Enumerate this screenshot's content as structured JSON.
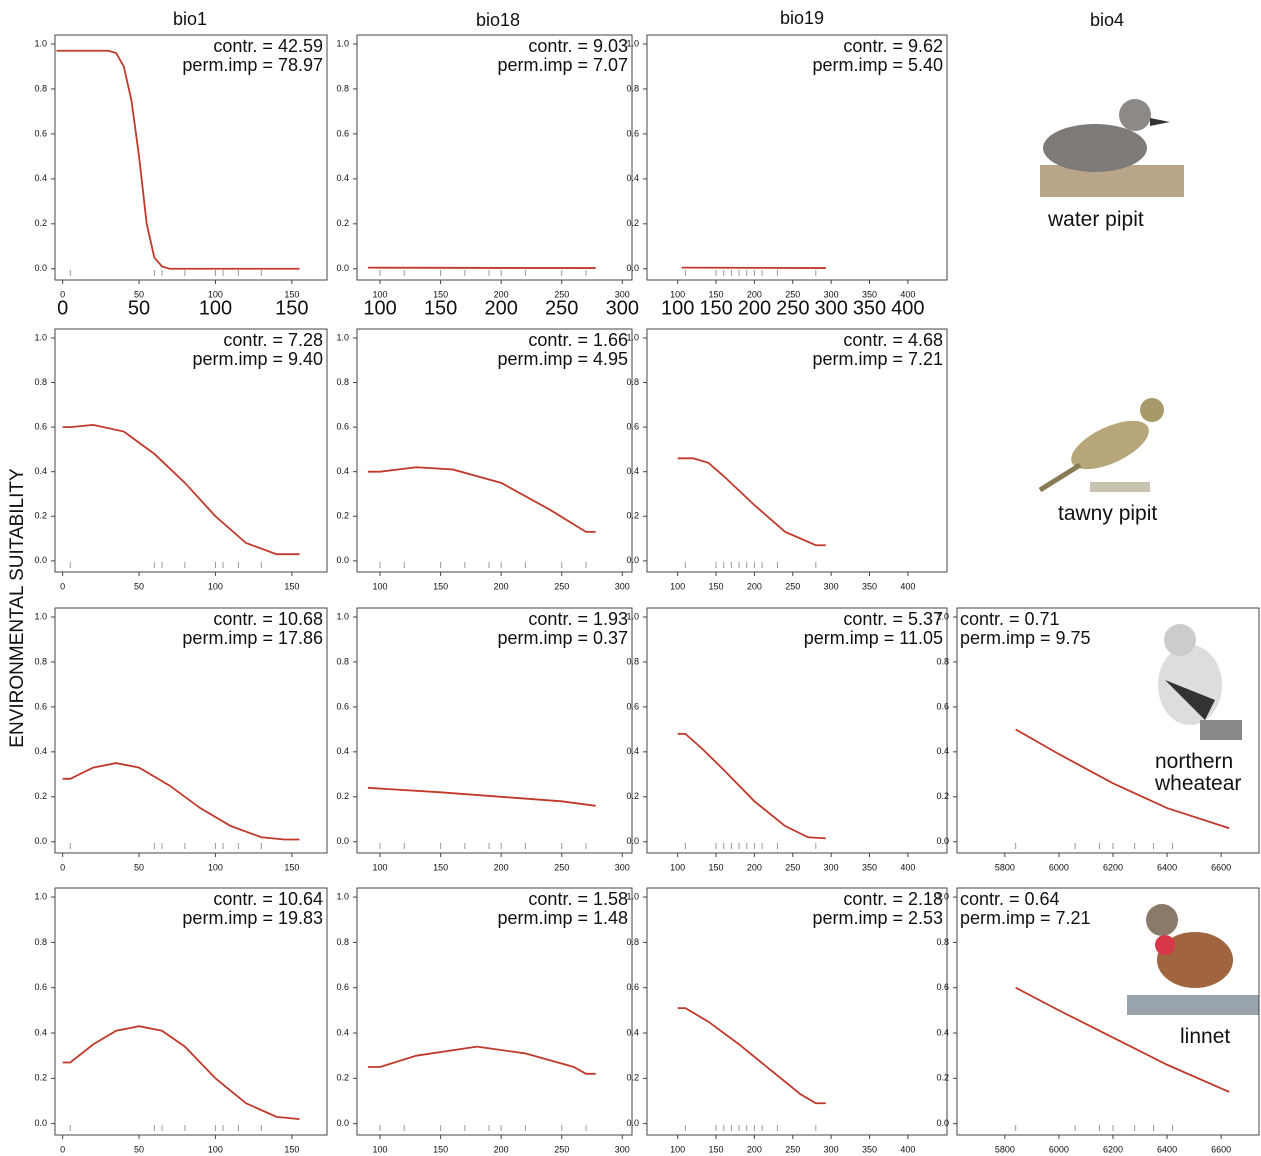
{
  "column_titles": [
    "bio1",
    "bio18",
    "bio19",
    "bio4"
  ],
  "y_label": "ENVIRONMENTAL SUITABILITY",
  "species": [
    "water pipit",
    "tawny pipit",
    "northern wheatear",
    "linnet"
  ],
  "chart_data": [
    {
      "type": "line",
      "annotations": [
        "contr. = 42.59",
        "perm.imp = 78.97"
      ],
      "x": [
        -4,
        10,
        20,
        30,
        35,
        40,
        45,
        50,
        55,
        60,
        65,
        70,
        80,
        100,
        120,
        155
      ],
      "values": [
        0.97,
        0.97,
        0.97,
        0.97,
        0.96,
        0.9,
        0.75,
        0.5,
        0.2,
        0.05,
        0.01,
        0,
        0,
        0,
        0,
        0
      ],
      "color": "#c0392b",
      "xlim": [
        -5,
        173
      ],
      "ylim": [
        -0.05,
        1.04
      ],
      "xticks": [
        0,
        50,
        100,
        150
      ],
      "yticks": [
        {
          "value": 0,
          "label": "0.0"
        },
        0.2,
        0.4,
        0.6,
        0.8,
        {
          "value": 1,
          "label": "1.0"
        }
      ],
      "rug": [
        5,
        60,
        65,
        80,
        100,
        105,
        115,
        130
      ],
      "large_xtick_labels": true
    },
    {
      "type": "line",
      "annotations": [
        "contr. = 9.03",
        "perm.imp = 7.07"
      ],
      "x": [
        90,
        278
      ],
      "values": [
        0.005,
        0.003
      ],
      "color": "#c0392b",
      "xlim": [
        81,
        308
      ],
      "ylim": [
        -0.05,
        1.04
      ],
      "xticks": [
        100,
        150,
        200,
        250,
        300
      ],
      "yticks": [
        {
          "value": 0,
          "label": "0.0"
        },
        0.2,
        0.4,
        0.6,
        0.8,
        {
          "value": 1,
          "label": "1.0"
        }
      ],
      "rug": [
        100,
        120,
        150,
        170,
        190,
        200,
        220,
        250,
        270
      ],
      "large_xtick_labels": true
    },
    {
      "type": "line",
      "annotations": [
        "contr. = 9.62",
        "perm.imp = 5.40"
      ],
      "x": [
        105,
        293
      ],
      "values": [
        0.005,
        0.003
      ],
      "color": "#c0392b",
      "xlim": [
        60,
        451
      ],
      "ylim": [
        -0.05,
        1.04
      ],
      "xticks": [
        100,
        150,
        200,
        250,
        300,
        350,
        400
      ],
      "yticks": [
        {
          "value": 0,
          "label": "0.0"
        },
        0.2,
        0.4,
        0.6,
        0.8,
        {
          "value": 1,
          "label": "1.0"
        }
      ],
      "rug": [
        110,
        150,
        160,
        170,
        180,
        190,
        200,
        210,
        230,
        280
      ],
      "large_xtick_labels": true
    },
    {
      "type": "line",
      "annotations": [
        "contr. = 7.28",
        "perm.imp = 9.40"
      ],
      "x": [
        0,
        5,
        20,
        40,
        60,
        80,
        100,
        120,
        140,
        155
      ],
      "values": [
        0.6,
        0.6,
        0.61,
        0.58,
        0.48,
        0.35,
        0.2,
        0.08,
        0.03,
        0.03
      ],
      "color": "#c0392b",
      "xlim": [
        -5,
        173
      ],
      "ylim": [
        -0.05,
        1.04
      ],
      "xticks": [
        0,
        50,
        100,
        150
      ],
      "yticks": [
        {
          "value": 0,
          "label": "0.0"
        },
        0.2,
        0.4,
        0.6,
        0.8,
        {
          "value": 1,
          "label": "1.0"
        }
      ],
      "rug": [
        5,
        60,
        65,
        80,
        100,
        105,
        115,
        130
      ]
    },
    {
      "type": "line",
      "annotations": [
        "contr. = 1.66",
        "perm.imp = 4.95"
      ],
      "x": [
        90,
        100,
        130,
        160,
        200,
        240,
        270,
        278
      ],
      "values": [
        0.4,
        0.4,
        0.42,
        0.41,
        0.35,
        0.23,
        0.13,
        0.13
      ],
      "color": "#c0392b",
      "xlim": [
        81,
        308
      ],
      "ylim": [
        -0.05,
        1.04
      ],
      "xticks": [
        100,
        150,
        200,
        250,
        300
      ],
      "yticks": [
        {
          "value": 0,
          "label": "0.0"
        },
        0.2,
        0.4,
        0.6,
        0.8,
        {
          "value": 1,
          "label": "1.0"
        }
      ],
      "rug": [
        100,
        120,
        150,
        170,
        190,
        200,
        220,
        250,
        270
      ]
    },
    {
      "type": "line",
      "annotations": [
        "contr. = 4.68",
        "perm.imp = 7.21"
      ],
      "x": [
        100,
        120,
        140,
        160,
        200,
        240,
        280,
        293
      ],
      "values": [
        0.46,
        0.46,
        0.44,
        0.38,
        0.25,
        0.13,
        0.07,
        0.07
      ],
      "color": "#c0392b",
      "xlim": [
        60,
        451
      ],
      "ylim": [
        -0.05,
        1.04
      ],
      "xticks": [
        100,
        150,
        200,
        250,
        300,
        350,
        400
      ],
      "yticks": [
        {
          "value": 0,
          "label": "0.0"
        },
        0.2,
        0.4,
        0.6,
        0.8,
        {
          "value": 1,
          "label": "1.0"
        }
      ],
      "rug": [
        110,
        150,
        160,
        170,
        180,
        190,
        200,
        210,
        230,
        280
      ]
    },
    {
      "type": "line",
      "annotations": [
        "contr. = 10.68",
        "perm.imp = 17.86"
      ],
      "x": [
        0,
        5,
        20,
        35,
        50,
        70,
        90,
        110,
        130,
        145,
        155
      ],
      "values": [
        0.28,
        0.28,
        0.33,
        0.35,
        0.33,
        0.25,
        0.15,
        0.07,
        0.02,
        0.01,
        0.01
      ],
      "color": "#c0392b",
      "xlim": [
        -5,
        173
      ],
      "ylim": [
        -0.05,
        1.04
      ],
      "xticks": [
        0,
        50,
        100,
        150
      ],
      "yticks": [
        {
          "value": 0,
          "label": "0.0"
        },
        0.2,
        0.4,
        0.6,
        0.8,
        {
          "value": 1,
          "label": "1.0"
        }
      ],
      "rug": [
        5,
        60,
        65,
        80,
        100,
        105,
        115,
        130
      ]
    },
    {
      "type": "line",
      "annotations": [
        "contr. = 1.93",
        "perm.imp = 0.37"
      ],
      "x": [
        90,
        150,
        200,
        250,
        278
      ],
      "values": [
        0.24,
        0.22,
        0.2,
        0.18,
        0.16
      ],
      "color": "#c0392b",
      "xlim": [
        81,
        308
      ],
      "ylim": [
        -0.05,
        1.04
      ],
      "xticks": [
        100,
        150,
        200,
        250,
        300
      ],
      "yticks": [
        {
          "value": 0,
          "label": "0.0"
        },
        0.2,
        0.4,
        0.6,
        0.8,
        {
          "value": 1,
          "label": "1.0"
        }
      ],
      "rug": [
        100,
        120,
        150,
        170,
        190,
        200,
        220,
        250,
        270
      ]
    },
    {
      "type": "line",
      "annotations": [
        "contr. = 5.37",
        "perm.imp = 11.05"
      ],
      "x": [
        100,
        110,
        130,
        160,
        200,
        240,
        270,
        293
      ],
      "values": [
        0.48,
        0.48,
        0.42,
        0.32,
        0.18,
        0.07,
        0.02,
        0.015
      ],
      "color": "#c0392b",
      "xlim": [
        60,
        451
      ],
      "ylim": [
        -0.05,
        1.04
      ],
      "xticks": [
        100,
        150,
        200,
        250,
        300,
        350,
        400
      ],
      "yticks": [
        {
          "value": 0,
          "label": "0.0"
        },
        0.2,
        0.4,
        0.6,
        0.8,
        {
          "value": 1,
          "label": "1.0"
        }
      ],
      "rug": [
        110,
        150,
        160,
        170,
        180,
        190,
        200,
        210,
        230,
        280
      ]
    },
    {
      "type": "line",
      "annotations": [
        "contr. = 0.71",
        "perm.imp = 9.75"
      ],
      "x": [
        5840,
        6000,
        6200,
        6400,
        6630
      ],
      "values": [
        0.5,
        0.39,
        0.26,
        0.15,
        0.06
      ],
      "color": "#c0392b",
      "xlim": [
        5623,
        6740
      ],
      "ylim": [
        -0.05,
        1.04
      ],
      "xticks": [
        5800,
        6000,
        6200,
        6400,
        6600
      ],
      "yticks": [
        {
          "value": 0,
          "label": "0.0"
        },
        0.2,
        0.4,
        0.6,
        0.8,
        {
          "value": 1,
          "label": "1.0"
        }
      ],
      "rug": [
        5840,
        6060,
        6150,
        6200,
        6280,
        6350,
        6420
      ]
    },
    {
      "type": "line",
      "annotations": [
        "contr. = 10.64",
        "perm.imp = 19.83"
      ],
      "x": [
        0,
        5,
        20,
        35,
        50,
        65,
        80,
        100,
        120,
        140,
        155
      ],
      "values": [
        0.27,
        0.27,
        0.35,
        0.41,
        0.43,
        0.41,
        0.34,
        0.2,
        0.09,
        0.03,
        0.02
      ],
      "color": "#c0392b",
      "xlim": [
        -5,
        173
      ],
      "ylim": [
        -0.05,
        1.04
      ],
      "xticks": [
        0,
        50,
        100,
        150
      ],
      "yticks": [
        {
          "value": 0,
          "label": "0.0"
        },
        0.2,
        0.4,
        0.6,
        0.8,
        {
          "value": 1,
          "label": "1.0"
        }
      ],
      "rug": [
        5,
        60,
        65,
        80,
        100,
        105,
        115,
        130
      ]
    },
    {
      "type": "line",
      "annotations": [
        "contr. = 1.58",
        "perm.imp = 1.48"
      ],
      "x": [
        90,
        100,
        130,
        180,
        220,
        260,
        270,
        278
      ],
      "values": [
        0.25,
        0.25,
        0.3,
        0.34,
        0.31,
        0.25,
        0.22,
        0.22
      ],
      "color": "#c0392b",
      "xlim": [
        81,
        308
      ],
      "ylim": [
        -0.05,
        1.04
      ],
      "xticks": [
        100,
        150,
        200,
        250,
        300
      ],
      "yticks": [
        {
          "value": 0,
          "label": "0.0"
        },
        0.2,
        0.4,
        0.6,
        0.8,
        {
          "value": 1,
          "label": "1.0"
        }
      ],
      "rug": [
        100,
        120,
        150,
        170,
        190,
        200,
        220,
        250,
        270
      ]
    },
    {
      "type": "line",
      "annotations": [
        "contr. = 2.18",
        "perm.imp = 2.53"
      ],
      "x": [
        100,
        110,
        140,
        180,
        220,
        260,
        280,
        293
      ],
      "values": [
        0.51,
        0.51,
        0.45,
        0.35,
        0.24,
        0.13,
        0.09,
        0.09
      ],
      "color": "#c0392b",
      "xlim": [
        60,
        451
      ],
      "ylim": [
        -0.05,
        1.04
      ],
      "xticks": [
        100,
        150,
        200,
        250,
        300,
        350,
        400
      ],
      "yticks": [
        {
          "value": 0,
          "label": "0.0"
        },
        0.2,
        0.4,
        0.6,
        0.8,
        {
          "value": 1,
          "label": "1.0"
        }
      ],
      "rug": [
        110,
        150,
        160,
        170,
        180,
        190,
        200,
        210,
        230,
        280
      ]
    },
    {
      "type": "line",
      "annotations": [
        "contr. = 0.64",
        "perm.imp = 7.21"
      ],
      "x": [
        5840,
        6000,
        6200,
        6400,
        6630
      ],
      "values": [
        0.6,
        0.5,
        0.38,
        0.26,
        0.14
      ],
      "color": "#c0392b",
      "xlim": [
        5623,
        6740
      ],
      "ylim": [
        -0.05,
        1.04
      ],
      "xticks": [
        5800,
        6000,
        6200,
        6400,
        6600
      ],
      "yticks": [
        {
          "value": 0,
          "label": "0.0"
        },
        0.2,
        0.4,
        0.6,
        0.8,
        {
          "value": 1,
          "label": "1.0"
        }
      ],
      "rug": [
        5840,
        6060,
        6150,
        6200,
        6280,
        6350,
        6420
      ]
    }
  ]
}
